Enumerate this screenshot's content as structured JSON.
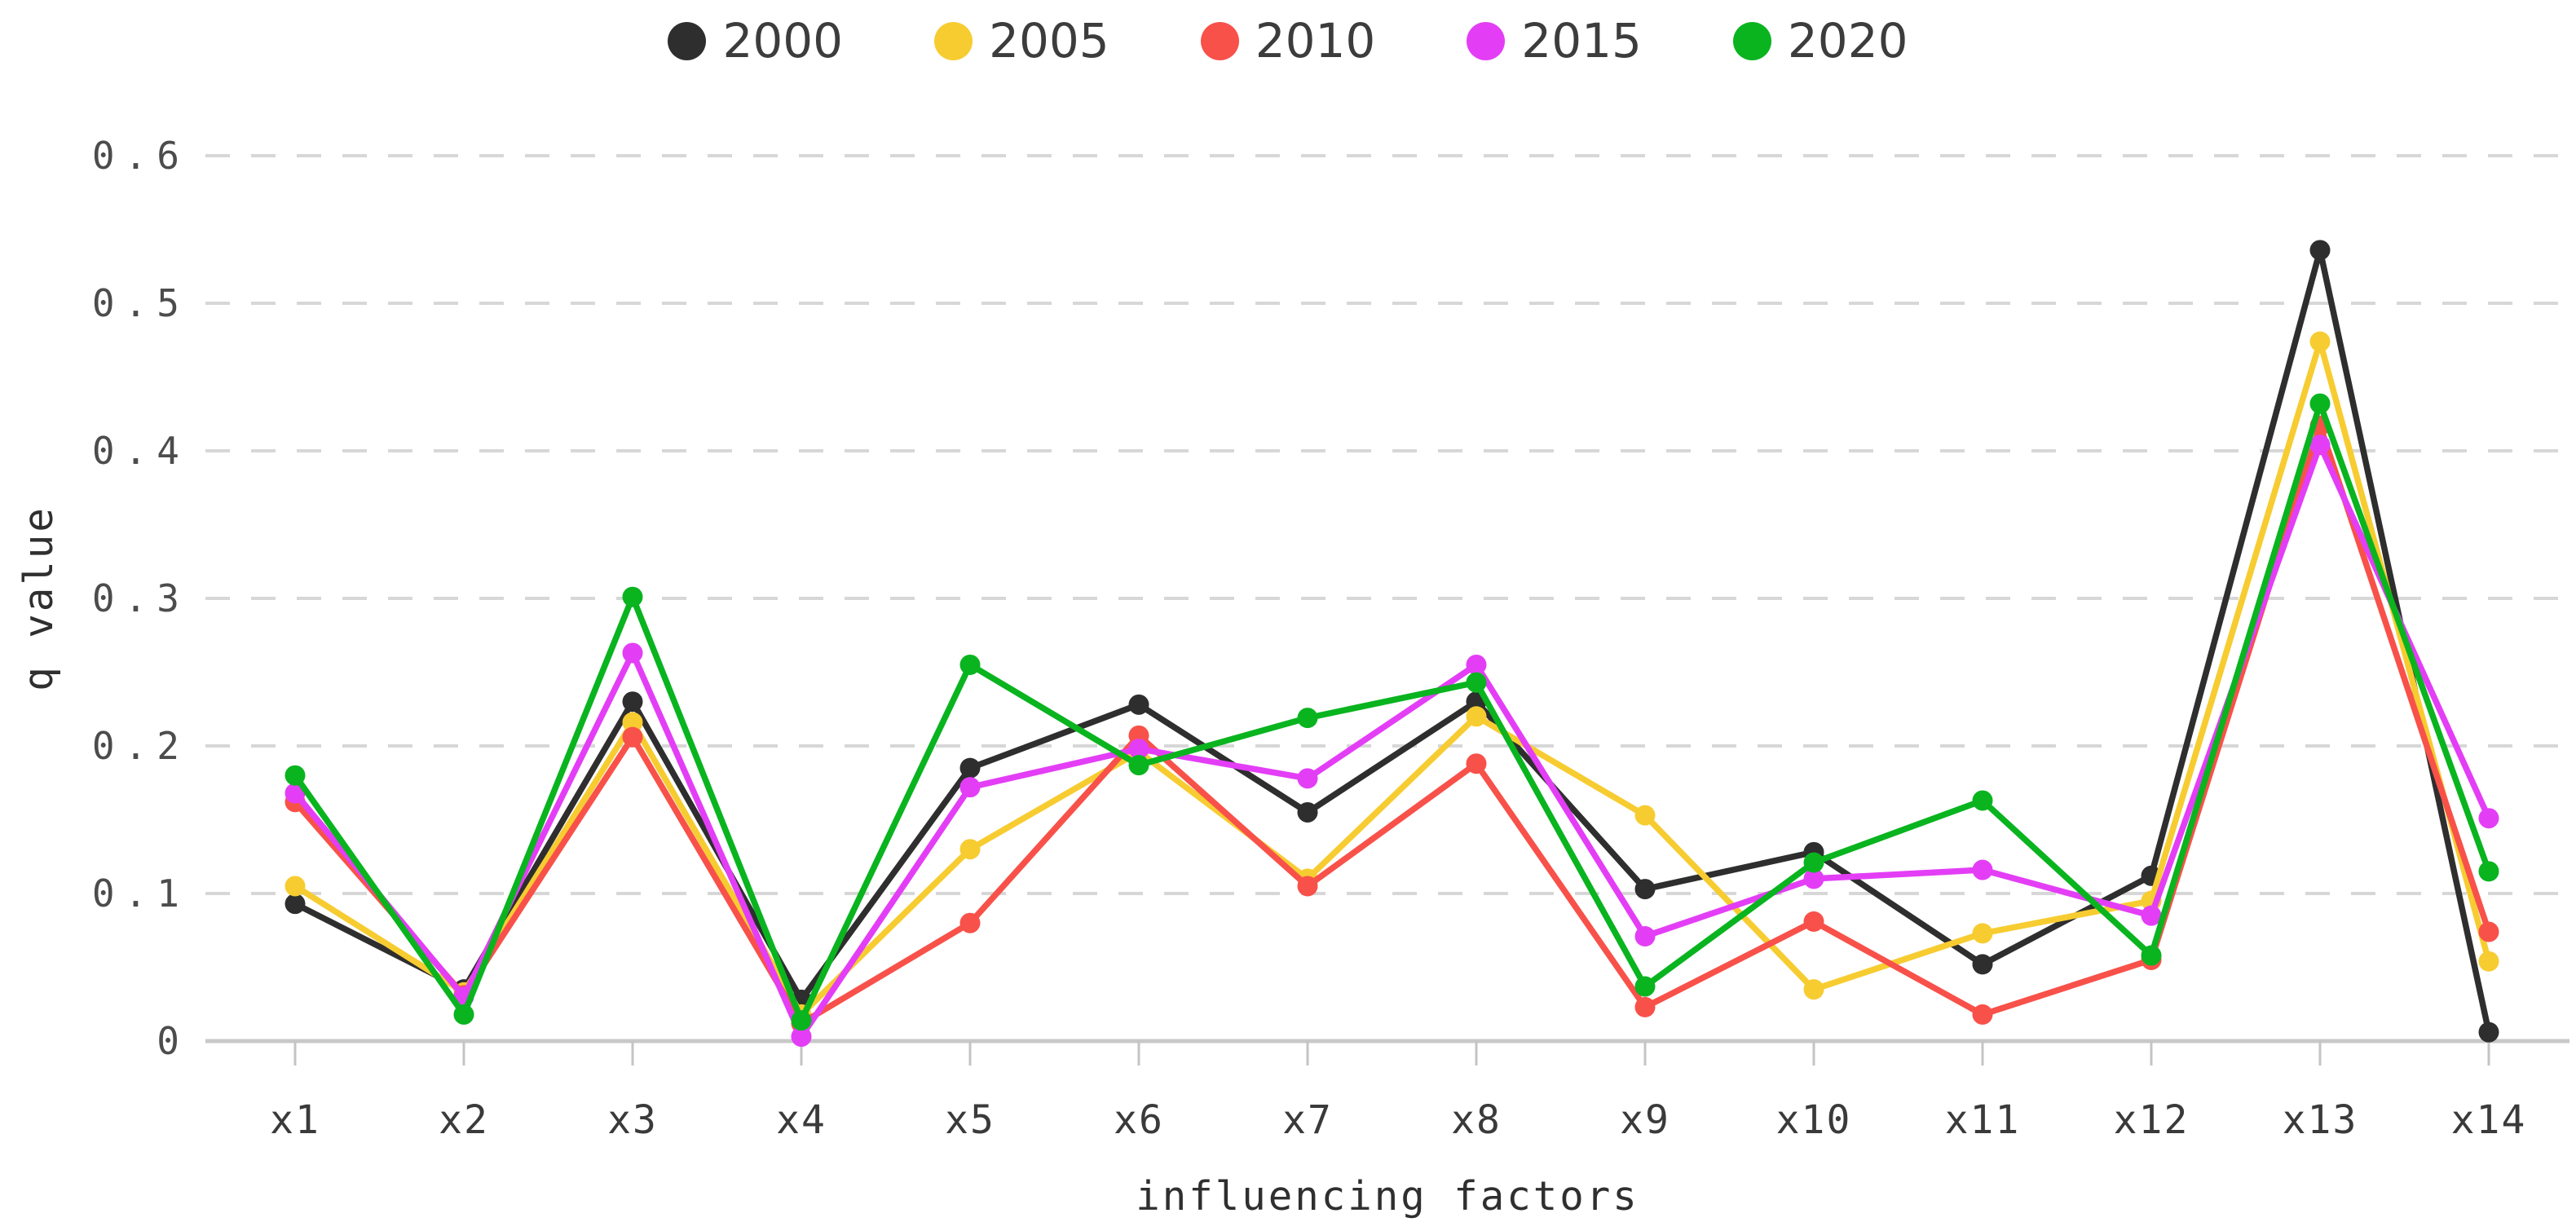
{
  "chart_data": {
    "type": "line",
    "title": "",
    "xlabel": "influencing factors",
    "ylabel": "q value",
    "ylim": [
      0,
      0.6
    ],
    "yticks": [
      0,
      0.1,
      0.2,
      0.3,
      0.4,
      0.5,
      0.6
    ],
    "ytick_labels": [
      "0",
      "0.1",
      "0.2",
      "0.3",
      "0.4",
      "0.5",
      "0.6"
    ],
    "categories": [
      "x1",
      "x2",
      "x3",
      "x4",
      "x5",
      "x6",
      "x7",
      "x8",
      "x9",
      "x10",
      "x11",
      "x12",
      "x13",
      "x14"
    ],
    "grid": "horizontal-dashed",
    "legend_position": "top",
    "marker": "circle",
    "series": [
      {
        "name": "2000",
        "color": "#2e2e2e",
        "values": [
          0.093,
          0.035,
          0.23,
          0.028,
          0.185,
          0.228,
          0.155,
          0.23,
          0.103,
          0.128,
          0.052,
          0.112,
          0.536,
          0.006
        ]
      },
      {
        "name": "2005",
        "color": "#f7cc31",
        "values": [
          0.105,
          0.033,
          0.216,
          0.018,
          0.13,
          0.196,
          0.11,
          0.22,
          0.153,
          0.035,
          0.073,
          0.095,
          0.474,
          0.054
        ]
      },
      {
        "name": "2010",
        "color": "#f8514a",
        "values": [
          0.162,
          0.031,
          0.206,
          0.012,
          0.08,
          0.207,
          0.105,
          0.188,
          0.023,
          0.081,
          0.018,
          0.055,
          0.417,
          0.074
        ]
      },
      {
        "name": "2015",
        "color": "#e33ef6",
        "values": [
          0.168,
          0.03,
          0.263,
          0.003,
          0.172,
          0.198,
          0.178,
          0.255,
          0.071,
          0.11,
          0.116,
          0.085,
          0.404,
          0.151
        ]
      },
      {
        "name": "2020",
        "color": "#09b41f",
        "values": [
          0.18,
          0.018,
          0.301,
          0.014,
          0.255,
          0.187,
          0.219,
          0.243,
          0.037,
          0.121,
          0.163,
          0.058,
          0.432,
          0.115
        ]
      }
    ]
  }
}
